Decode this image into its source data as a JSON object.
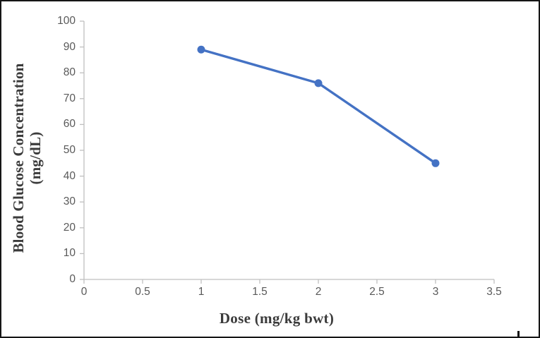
{
  "chart_data": {
    "type": "line",
    "title": "",
    "xlabel": "Dose (mg/kg bwt)",
    "ylabel": "Blood Glucose Concentration (mg/dL)",
    "ylabel_lines": [
      "Blood Glucose Concentration",
      "(mg/dL)"
    ],
    "series": [
      {
        "name": "Blood Glucose Concentration",
        "x": [
          1,
          2,
          3
        ],
        "values": [
          89,
          76,
          45
        ]
      }
    ],
    "xlim": [
      0,
      3.5
    ],
    "ylim": [
      0,
      100
    ],
    "x_tick_values": [
      0,
      0.5,
      1,
      1.5,
      2,
      2.5,
      3,
      3.5
    ],
    "x_tick_labels": [
      "0",
      "0.5",
      "1",
      "1.5",
      "2",
      "2.5",
      "3",
      "3.5"
    ],
    "y_tick_values": [
      0,
      10,
      20,
      30,
      40,
      50,
      60,
      70,
      80,
      90,
      100
    ],
    "y_tick_labels": [
      "0",
      "10",
      "20",
      "30",
      "40",
      "50",
      "60",
      "70",
      "80",
      "90",
      "100"
    ],
    "grid": false,
    "legend": "none",
    "marker": "circle",
    "colors": {
      "line": "#4472C4",
      "marker": "#4472C4",
      "axis": "#BFBFBF",
      "tick_label": "#595959",
      "axis_title": "#3b3b3b",
      "background": "#ffffff",
      "figure_border": "#151515"
    }
  }
}
